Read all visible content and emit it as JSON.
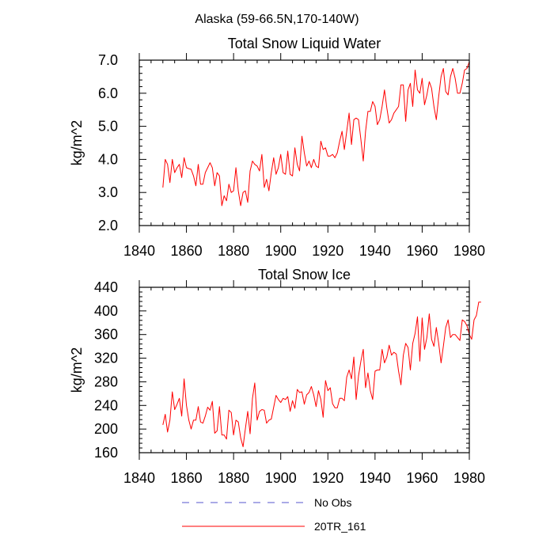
{
  "figure": {
    "suptitle": "Alaska (59-66.5N,170-140W)"
  },
  "legend": {
    "entries": [
      {
        "label": "No Obs",
        "color": "#5555cc",
        "style": "dashed"
      },
      {
        "label": "20TR_161",
        "color": "#ff0000",
        "style": "solid"
      }
    ]
  },
  "chart_data": [
    {
      "type": "line",
      "title": "Total Snow Liquid Water",
      "xlabel": "",
      "ylabel": "kg/m^2",
      "xlim": [
        1840,
        1980
      ],
      "ylim": [
        2.0,
        7.0
      ],
      "xticks": [
        1840,
        1860,
        1880,
        1900,
        1920,
        1940,
        1960,
        1980
      ],
      "yticks": [
        2.0,
        3.0,
        4.0,
        5.0,
        6.0,
        7.0
      ],
      "ytick_labels": [
        "2.0",
        "3.0",
        "4.0",
        "5.0",
        "6.0",
        "7.0"
      ],
      "x_start": 1850,
      "x_step": 1,
      "series": [
        {
          "name": "20TR_161",
          "color": "#ff0000",
          "values": [
            3.15,
            4.0,
            3.85,
            3.3,
            4.0,
            3.6,
            3.75,
            3.85,
            3.45,
            4.05,
            3.75,
            3.72,
            3.7,
            3.5,
            3.2,
            3.85,
            3.25,
            3.25,
            3.6,
            3.75,
            3.9,
            3.75,
            3.2,
            3.6,
            3.5,
            2.6,
            2.9,
            2.75,
            3.25,
            3.0,
            3.05,
            3.75,
            3.05,
            2.6,
            3.0,
            3.05,
            2.7,
            3.65,
            3.95,
            3.85,
            3.8,
            3.65,
            4.15,
            3.15,
            3.4,
            3.05,
            3.6,
            4.05,
            3.55,
            3.75,
            4.15,
            3.6,
            3.55,
            4.25,
            3.55,
            3.5,
            4.35,
            3.85,
            3.65,
            4.7,
            4.2,
            3.8,
            3.95,
            3.75,
            4.0,
            3.8,
            3.75,
            4.55,
            4.3,
            4.35,
            4.1,
            4.1,
            4.15,
            4.05,
            4.2,
            4.55,
            4.85,
            4.3,
            4.85,
            5.4,
            4.45,
            5.2,
            5.25,
            5.2,
            4.6,
            3.95,
            4.85,
            5.45,
            5.45,
            5.75,
            5.6,
            5.05,
            5.2,
            5.6,
            6.1,
            5.55,
            5.1,
            5.2,
            5.4,
            5.5,
            5.6,
            6.25,
            6.25,
            5.15,
            6.1,
            6.3,
            5.6,
            6.7,
            6.1,
            6.0,
            6.45,
            5.65,
            5.95,
            6.35,
            6.15,
            5.6,
            5.2,
            5.9,
            6.5,
            6.75,
            6.05,
            5.95,
            6.5,
            6.75,
            6.45,
            6.0,
            6.0,
            6.3,
            6.7,
            6.75,
            6.95
          ]
        }
      ]
    },
    {
      "type": "line",
      "title": "Total Snow Ice",
      "xlabel": "",
      "ylabel": "kg/m^2",
      "xlim": [
        1840,
        1980
      ],
      "ylim": [
        160,
        440
      ],
      "xticks": [
        1840,
        1860,
        1880,
        1900,
        1920,
        1940,
        1960,
        1980
      ],
      "yticks": [
        160,
        200,
        240,
        280,
        320,
        360,
        400,
        440
      ],
      "ytick_labels": [
        "160",
        "200",
        "240",
        "280",
        "320",
        "360",
        "400",
        "440"
      ],
      "x_start": 1850,
      "x_step": 1,
      "series": [
        {
          "name": "20TR_161",
          "color": "#ff0000",
          "values": [
            207,
            225,
            195,
            215,
            263,
            233,
            242,
            252,
            222,
            285,
            240,
            215,
            200,
            215,
            215,
            238,
            212,
            210,
            222,
            237,
            232,
            247,
            193,
            197,
            238,
            190,
            190,
            183,
            232,
            228,
            190,
            215,
            212,
            185,
            170,
            200,
            230,
            192,
            252,
            278,
            215,
            230,
            233,
            232,
            210,
            215,
            217,
            237,
            257,
            250,
            245,
            252,
            250,
            255,
            230,
            248,
            235,
            267,
            262,
            263,
            242,
            258,
            262,
            272,
            258,
            238,
            265,
            250,
            220,
            282,
            265,
            270,
            243,
            236,
            236,
            252,
            252,
            248,
            288,
            300,
            285,
            322,
            250,
            290,
            315,
            335,
            270,
            295,
            265,
            250,
            298,
            300,
            300,
            335,
            312,
            322,
            342,
            325,
            330,
            327,
            298,
            275,
            325,
            345,
            338,
            300,
            345,
            362,
            390,
            315,
            388,
            335,
            355,
            395,
            352,
            340,
            372,
            345,
            312,
            340,
            372,
            385,
            355,
            360,
            360,
            355,
            350,
            385,
            382,
            375,
            360,
            352,
            385,
            392,
            415,
            415
          ]
        }
      ]
    }
  ]
}
